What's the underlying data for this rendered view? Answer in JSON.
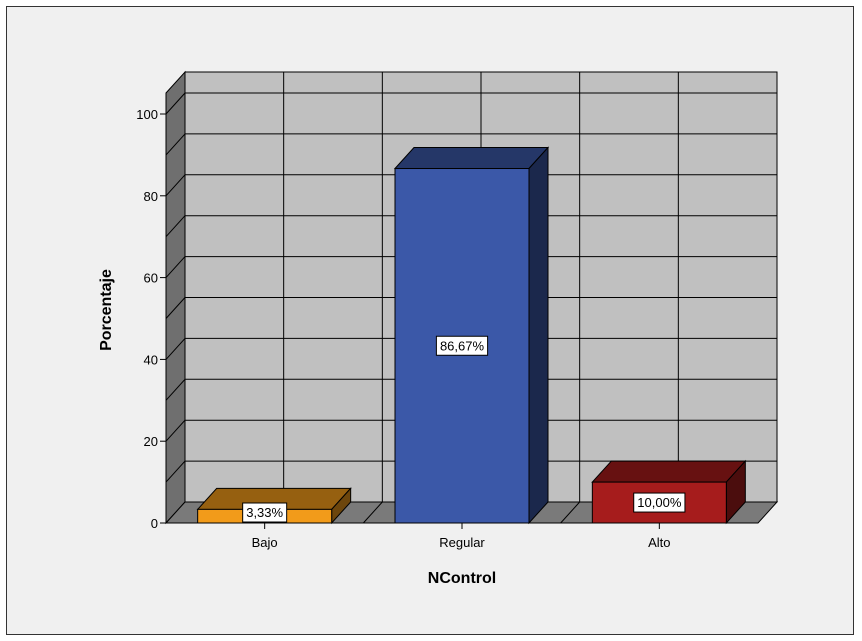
{
  "chart_data": {
    "type": "bar",
    "categories": [
      "Bajo",
      "Regular",
      "Alto"
    ],
    "values": [
      3.33,
      86.67,
      10.0
    ],
    "data_labels": [
      "3,33%",
      "86,67%",
      "10,00%"
    ],
    "colors": [
      "#f29b1a",
      "#3b58a8",
      "#a61c1c"
    ],
    "xlabel": "NControl",
    "ylabel": "Porcentaje",
    "ylim": [
      0,
      100
    ],
    "yticks": [
      0,
      20,
      40,
      60,
      80,
      100
    ],
    "grid": true,
    "three_d": true,
    "colors_ui": {
      "wall": "#c0c0c0",
      "floor": "#7a7a7a",
      "side_wall": "#6f6f6f",
      "background": "#f0f0f0"
    }
  }
}
